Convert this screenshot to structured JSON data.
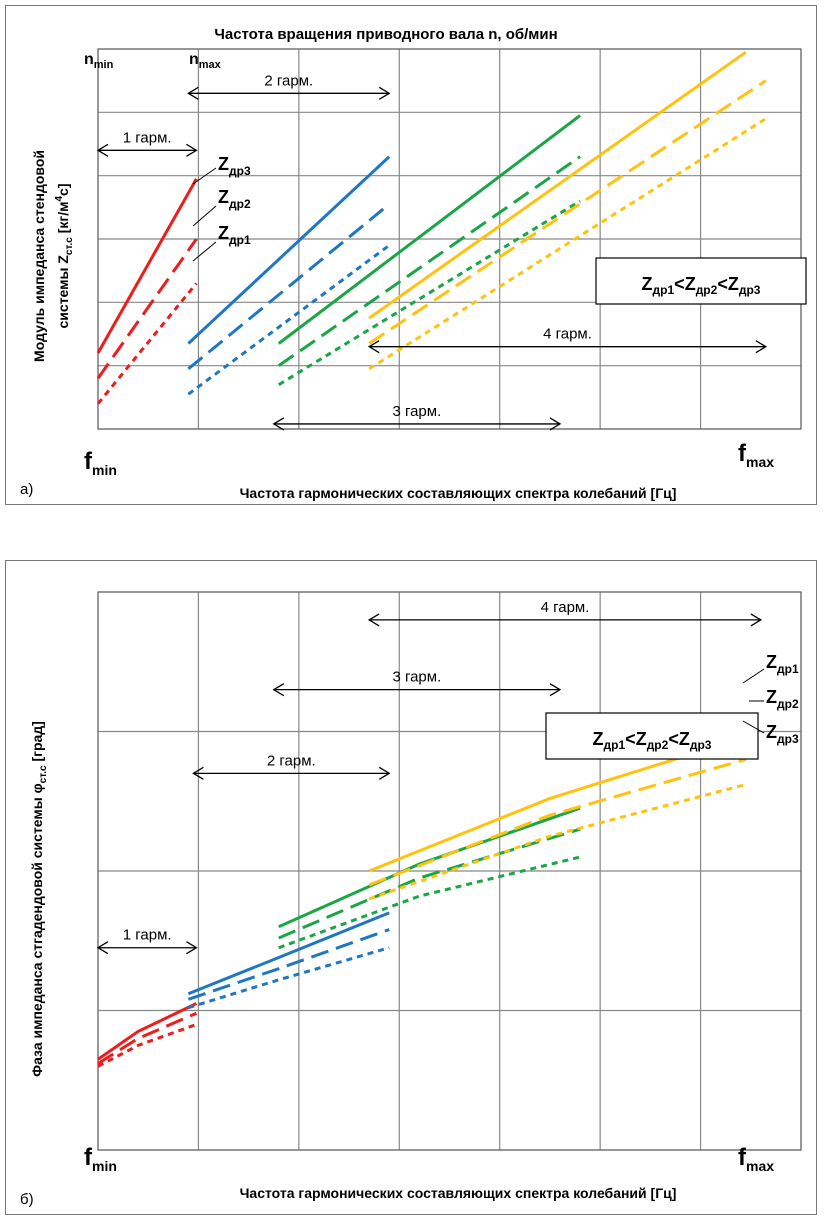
{
  "chart_data": [
    {
      "type": "line",
      "panel_label": "а)",
      "top_title": "Частота вращения приводного вала  n, об/мин",
      "ylabel_line1": "Модуль импеданса стендовой",
      "ylabel_line2_pre": "системы  Z",
      "ylabel_line2_sub": "ст.с",
      "ylabel_line2_unit_pre": " [кг/м",
      "ylabel_line2_sup": "4",
      "ylabel_line2_unit_post": "с]",
      "xlabel": "Частота гармонических  составляющих  спектра  колебаний  [Гц]",
      "n_min": {
        "base": "n",
        "sub": "min"
      },
      "n_max": {
        "base": "n",
        "sub": "max"
      },
      "f_min": {
        "base": "f",
        "sub": "min"
      },
      "f_max": {
        "base": "f",
        "sub": "max"
      },
      "legend_box": {
        "base": "Z",
        "sub1": "др1",
        "lt1": "<",
        "sub2": "др2",
        "lt2": "<",
        "sub3": "др3"
      },
      "curve_labels": [
        {
          "base": "Z",
          "sub": "др3"
        },
        {
          "base": "Z",
          "sub": "др2"
        },
        {
          "base": "Z",
          "sub": "др1"
        }
      ],
      "harmonic_labels": [
        "1 гарм.",
        "2 гарм.",
        "3 гарм.",
        "4 гарм."
      ],
      "xlim": [
        0,
        7
      ],
      "ylim": [
        0,
        6
      ],
      "grid": true,
      "colors": {
        "h1": "#ee1c1c",
        "h2": "#1f77c4",
        "h3": "#1aa546",
        "h4": "#ffc20e"
      },
      "series": [
        {
          "harmonic": 1,
          "dash": "solid",
          "x": [
            0,
            0.98
          ],
          "y": [
            1.2,
            3.95
          ]
        },
        {
          "harmonic": 1,
          "dash": "long",
          "x": [
            0,
            0.98
          ],
          "y": [
            0.8,
            3.0
          ]
        },
        {
          "harmonic": 1,
          "dash": "short",
          "x": [
            0,
            0.98
          ],
          "y": [
            0.4,
            2.3
          ]
        },
        {
          "harmonic": 2,
          "dash": "solid",
          "x": [
            0.9,
            2.9
          ],
          "y": [
            1.35,
            4.3
          ]
        },
        {
          "harmonic": 2,
          "dash": "long",
          "x": [
            0.9,
            2.9
          ],
          "y": [
            0.95,
            3.55
          ]
        },
        {
          "harmonic": 2,
          "dash": "short",
          "x": [
            0.9,
            2.9
          ],
          "y": [
            0.55,
            2.9
          ]
        },
        {
          "harmonic": 3,
          "dash": "solid",
          "x": [
            1.8,
            4.8
          ],
          "y": [
            1.35,
            4.95
          ]
        },
        {
          "harmonic": 3,
          "dash": "long",
          "x": [
            1.8,
            4.8
          ],
          "y": [
            1.0,
            4.3
          ]
        },
        {
          "harmonic": 3,
          "dash": "short",
          "x": [
            1.8,
            4.8
          ],
          "y": [
            0.7,
            3.6
          ]
        },
        {
          "harmonic": 4,
          "dash": "solid",
          "x": [
            2.7,
            6.45
          ],
          "y": [
            1.75,
            5.95
          ]
        },
        {
          "harmonic": 4,
          "dash": "long",
          "x": [
            2.7,
            6.65
          ],
          "y": [
            1.35,
            5.5
          ]
        },
        {
          "harmonic": 4,
          "dash": "short",
          "x": [
            2.7,
            6.65
          ],
          "y": [
            0.95,
            4.9
          ]
        }
      ],
      "harmonic_ranges": [
        {
          "label": "1 гарм.",
          "x": [
            0,
            0.98
          ],
          "y": 4.4
        },
        {
          "label": "2 гарм.",
          "x": [
            0.9,
            2.9
          ],
          "y": 5.3
        },
        {
          "label": "3 гарм.",
          "x": [
            1.75,
            4.6
          ],
          "y": 0.08
        },
        {
          "label": "4 гарм.",
          "x": [
            2.7,
            6.65
          ],
          "y": 1.3
        }
      ]
    },
    {
      "type": "line",
      "panel_label": "б)",
      "ylabel_pre": "Фаза импеданса стгадендовой системы  φ",
      "ylabel_sub": "ст.с",
      "ylabel_post": "  [град]",
      "xlabel": "Частота гармонических  составляющих  спектра  колебаний  [Гц]",
      "f_min": {
        "base": "f",
        "sub": "min"
      },
      "f_max": {
        "base": "f",
        "sub": "max"
      },
      "legend_box": {
        "base": "Z",
        "sub1": "др1",
        "lt1": "<",
        "sub2": "др2",
        "lt2": "<",
        "sub3": "др3"
      },
      "curve_labels": [
        {
          "base": "Z",
          "sub": "др1"
        },
        {
          "base": "Z",
          "sub": "др2"
        },
        {
          "base": "Z",
          "sub": "др3"
        }
      ],
      "harmonic_labels": [
        "1 гарм.",
        "2 гарм.",
        "3 гарм.",
        "4 гарм."
      ],
      "xlim": [
        0,
        7
      ],
      "ylim": [
        0,
        4
      ],
      "grid": true,
      "colors": {
        "h1": "#ee1c1c",
        "h2": "#1f77c4",
        "h3": "#1aa546",
        "h4": "#ffc20e"
      },
      "series": [
        {
          "harmonic": 1,
          "dash": "solid",
          "x": [
            0,
            0.4,
            0.98
          ],
          "y": [
            0.65,
            0.85,
            1.05
          ]
        },
        {
          "harmonic": 1,
          "dash": "long",
          "x": [
            0,
            0.4,
            0.98
          ],
          "y": [
            0.62,
            0.8,
            0.98
          ]
        },
        {
          "harmonic": 1,
          "dash": "short",
          "x": [
            0,
            0.4,
            0.98
          ],
          "y": [
            0.6,
            0.75,
            0.9
          ]
        },
        {
          "harmonic": 2,
          "dash": "solid",
          "x": [
            0.9,
            1.8,
            2.9
          ],
          "y": [
            1.12,
            1.38,
            1.7
          ]
        },
        {
          "harmonic": 2,
          "dash": "long",
          "x": [
            0.9,
            1.8,
            2.9
          ],
          "y": [
            1.08,
            1.3,
            1.58
          ]
        },
        {
          "harmonic": 2,
          "dash": "short",
          "x": [
            0.9,
            1.8,
            2.9
          ],
          "y": [
            1.02,
            1.22,
            1.45
          ]
        },
        {
          "harmonic": 3,
          "dash": "solid",
          "x": [
            1.8,
            3.2,
            4.8
          ],
          "y": [
            1.6,
            2.05,
            2.45
          ]
        },
        {
          "harmonic": 3,
          "dash": "long",
          "x": [
            1.8,
            3.2,
            4.8
          ],
          "y": [
            1.52,
            1.95,
            2.3
          ]
        },
        {
          "harmonic": 3,
          "dash": "short",
          "x": [
            1.8,
            3.2,
            4.8
          ],
          "y": [
            1.45,
            1.82,
            2.1
          ]
        },
        {
          "harmonic": 4,
          "dash": "solid",
          "x": [
            2.7,
            4.5,
            6.45
          ],
          "y": [
            2.0,
            2.52,
            2.96
          ]
        },
        {
          "harmonic": 4,
          "dash": "long",
          "x": [
            2.7,
            4.5,
            6.45
          ],
          "y": [
            1.9,
            2.4,
            2.8
          ]
        },
        {
          "harmonic": 4,
          "dash": "short",
          "x": [
            2.7,
            4.5,
            6.45
          ],
          "y": [
            1.8,
            2.25,
            2.62
          ]
        }
      ],
      "harmonic_ranges": [
        {
          "label": "1 гарм.",
          "x": [
            0,
            0.98
          ],
          "y": 1.45
        },
        {
          "label": "2 гарм.",
          "x": [
            0.95,
            2.9
          ],
          "y": 2.7
        },
        {
          "label": "3 гарм.",
          "x": [
            1.75,
            4.6
          ],
          "y": 3.3
        },
        {
          "label": "4 гарм.",
          "x": [
            2.7,
            6.6
          ],
          "y": 3.8
        }
      ]
    }
  ]
}
